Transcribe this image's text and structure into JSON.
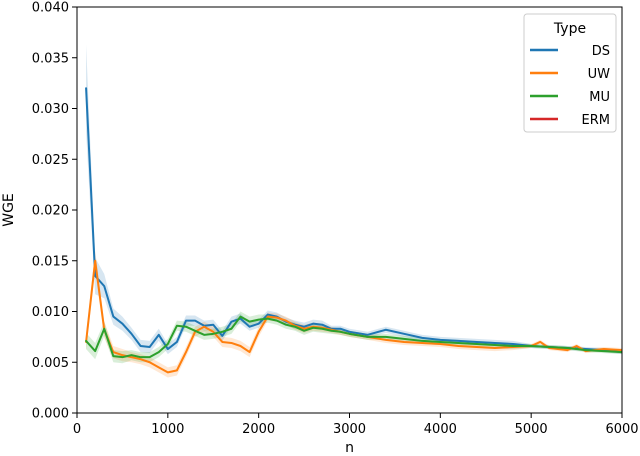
{
  "chart_data": {
    "type": "line",
    "title": "",
    "xlabel": "n",
    "ylabel": "WGE",
    "xlim": [
      0,
      6000
    ],
    "ylim": [
      0,
      0.04
    ],
    "xticks": [
      0,
      1000,
      2000,
      3000,
      4000,
      5000,
      6000
    ],
    "yticks": [
      0.0,
      0.005,
      0.01,
      0.015,
      0.02,
      0.025,
      0.03,
      0.035,
      0.04
    ],
    "xtick_labels": [
      "0",
      "1000",
      "2000",
      "3000",
      "4000",
      "5000",
      "6000"
    ],
    "ytick_labels": [
      "0.000",
      "0.005",
      "0.010",
      "0.015",
      "0.020",
      "0.025",
      "0.030",
      "0.035",
      "0.040"
    ],
    "grid": false,
    "legend": {
      "title": "Type",
      "placement": "top-right"
    },
    "series": [
      {
        "name": "DS",
        "color": "#1f77b4",
        "x": [
          100,
          200,
          300,
          400,
          500,
          600,
          700,
          800,
          900,
          1000,
          1100,
          1200,
          1300,
          1400,
          1500,
          1600,
          1700,
          1800,
          1900,
          2000,
          2100,
          2200,
          2300,
          2400,
          2500,
          2600,
          2700,
          2800,
          2900,
          3000,
          3200,
          3400,
          3600,
          3800,
          4000,
          4200,
          4400,
          4600,
          4800,
          5000,
          5200,
          5400,
          5600,
          5800,
          6000
        ],
        "y": [
          0.032,
          0.0135,
          0.0125,
          0.0095,
          0.0088,
          0.0078,
          0.0066,
          0.0065,
          0.0077,
          0.0063,
          0.007,
          0.0091,
          0.0091,
          0.0086,
          0.0087,
          0.0076,
          0.009,
          0.0093,
          0.0085,
          0.0088,
          0.0097,
          0.0095,
          0.009,
          0.0087,
          0.0085,
          0.0088,
          0.0087,
          0.0083,
          0.0083,
          0.008,
          0.0077,
          0.0082,
          0.0078,
          0.0074,
          0.0072,
          0.0071,
          0.007,
          0.0069,
          0.0068,
          0.0066,
          0.0065,
          0.0064,
          0.0063,
          0.0062,
          0.006
        ],
        "band": [
          0.0043,
          0.0018,
          0.0012,
          0.0008,
          0.0007,
          0.0006,
          0.0006,
          0.0006,
          0.0006,
          0.0005,
          0.0005,
          0.0005,
          0.0005,
          0.0005,
          0.0005,
          0.0005,
          0.0005,
          0.0005,
          0.0004,
          0.0004,
          0.0004,
          0.0004,
          0.0004,
          0.0004,
          0.0004,
          0.0004,
          0.0004,
          0.0003,
          0.0003,
          0.0003,
          0.0003,
          0.0003,
          0.0003,
          0.0003,
          0.0003,
          0.0003,
          0.0003,
          0.0003,
          0.0003,
          0.0002,
          0.0002,
          0.0002,
          0.0002,
          0.0002,
          0.0002
        ]
      },
      {
        "name": "UW",
        "color": "#ff7f0e",
        "x": [
          100,
          200,
          300,
          400,
          500,
          600,
          700,
          800,
          900,
          1000,
          1100,
          1200,
          1300,
          1400,
          1500,
          1600,
          1700,
          1800,
          1900,
          2000,
          2100,
          2200,
          2300,
          2400,
          2500,
          2600,
          2700,
          2800,
          2900,
          3000,
          3200,
          3400,
          3600,
          3800,
          4000,
          4200,
          4400,
          4600,
          4800,
          5000,
          5100,
          5200,
          5400,
          5500,
          5600,
          5800,
          6000
        ],
        "y": [
          0.007,
          0.015,
          0.0082,
          0.006,
          0.0057,
          0.0055,
          0.0053,
          0.005,
          0.0045,
          0.004,
          0.0042,
          0.006,
          0.008,
          0.0085,
          0.008,
          0.007,
          0.0069,
          0.0066,
          0.006,
          0.008,
          0.0095,
          0.0094,
          0.0091,
          0.0086,
          0.0083,
          0.0085,
          0.0084,
          0.0082,
          0.008,
          0.0078,
          0.0075,
          0.0072,
          0.007,
          0.0069,
          0.0068,
          0.0066,
          0.0065,
          0.0064,
          0.0065,
          0.0066,
          0.007,
          0.0064,
          0.0062,
          0.0066,
          0.0061,
          0.0063,
          0.0062
        ],
        "band": [
          0.0008,
          0.001,
          0.0008,
          0.0006,
          0.0006,
          0.0005,
          0.0005,
          0.0005,
          0.0005,
          0.0005,
          0.0005,
          0.0005,
          0.0005,
          0.0005,
          0.0005,
          0.0005,
          0.0005,
          0.0005,
          0.0005,
          0.0005,
          0.0004,
          0.0004,
          0.0004,
          0.0004,
          0.0004,
          0.0004,
          0.0004,
          0.0003,
          0.0003,
          0.0003,
          0.0003,
          0.0003,
          0.0003,
          0.0003,
          0.0003,
          0.0003,
          0.0003,
          0.0003,
          0.0003,
          0.0002,
          0.0002,
          0.0002,
          0.0002,
          0.0002,
          0.0002,
          0.0002,
          0.0002
        ]
      },
      {
        "name": "MU",
        "color": "#2ca02c",
        "x": [
          100,
          200,
          300,
          400,
          500,
          600,
          700,
          800,
          900,
          1000,
          1100,
          1200,
          1300,
          1400,
          1500,
          1600,
          1700,
          1800,
          1900,
          2000,
          2100,
          2200,
          2300,
          2400,
          2500,
          2600,
          2700,
          2800,
          2900,
          3000,
          3200,
          3400,
          3600,
          3800,
          4000,
          4200,
          4400,
          4600,
          4800,
          5000,
          5200,
          5400,
          5600,
          5800,
          6000
        ],
        "y": [
          0.0071,
          0.0061,
          0.0083,
          0.0056,
          0.0055,
          0.0057,
          0.0055,
          0.0055,
          0.006,
          0.0068,
          0.0086,
          0.0085,
          0.0081,
          0.0077,
          0.0078,
          0.008,
          0.0083,
          0.0095,
          0.009,
          0.0092,
          0.0093,
          0.0091,
          0.0087,
          0.0085,
          0.0081,
          0.0084,
          0.0083,
          0.0081,
          0.008,
          0.0078,
          0.0075,
          0.0075,
          0.0073,
          0.0071,
          0.007,
          0.0069,
          0.0068,
          0.0067,
          0.0066,
          0.0066,
          0.0065,
          0.0064,
          0.0062,
          0.0061,
          0.006
        ],
        "band": [
          0.0008,
          0.0008,
          0.0007,
          0.0006,
          0.0006,
          0.0005,
          0.0005,
          0.0005,
          0.0005,
          0.0005,
          0.0005,
          0.0005,
          0.0005,
          0.0005,
          0.0005,
          0.0005,
          0.0005,
          0.0005,
          0.0005,
          0.0005,
          0.0004,
          0.0004,
          0.0004,
          0.0004,
          0.0004,
          0.0004,
          0.0004,
          0.0003,
          0.0003,
          0.0003,
          0.0003,
          0.0003,
          0.0003,
          0.0003,
          0.0003,
          0.0003,
          0.0003,
          0.0003,
          0.0003,
          0.0002,
          0.0002,
          0.0002,
          0.0002,
          0.0002,
          0.0002
        ]
      },
      {
        "name": "ERM",
        "color": "#d62728",
        "x": [],
        "y": [],
        "band": []
      }
    ]
  }
}
